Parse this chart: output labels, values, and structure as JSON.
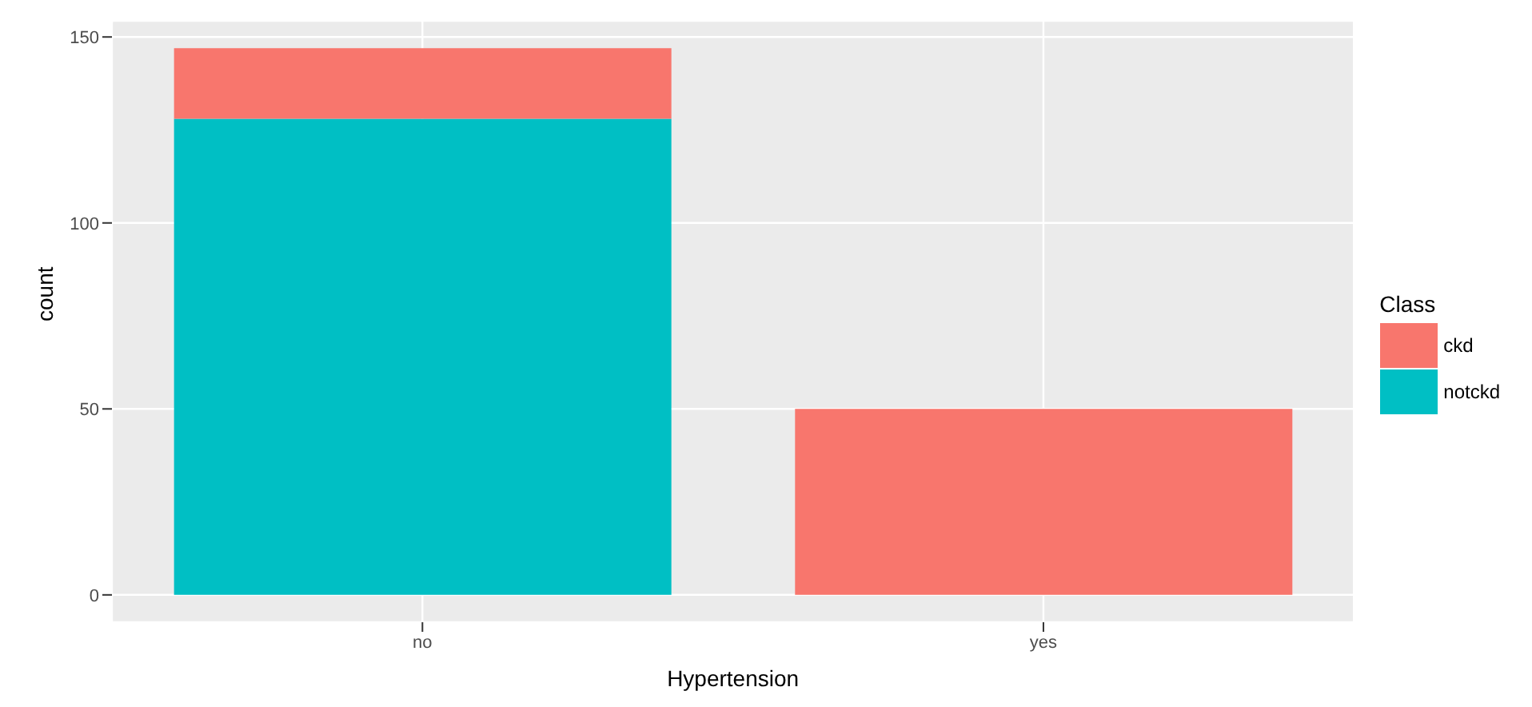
{
  "chart_data": {
    "type": "bar",
    "stacked": true,
    "xlabel": "Hypertension",
    "ylabel": "count",
    "legend_title": "Class",
    "categories": [
      "no",
      "yes"
    ],
    "series": [
      {
        "name": "notckd",
        "color": "#00bfc4",
        "values": [
          128,
          0
        ]
      },
      {
        "name": "ckd",
        "color": "#f8766d",
        "values": [
          19,
          50
        ]
      }
    ],
    "ylim": [
      -7.35,
      154.35
    ],
    "yticks": [
      0,
      50,
      100,
      150
    ],
    "grid": true,
    "legend": "right"
  }
}
